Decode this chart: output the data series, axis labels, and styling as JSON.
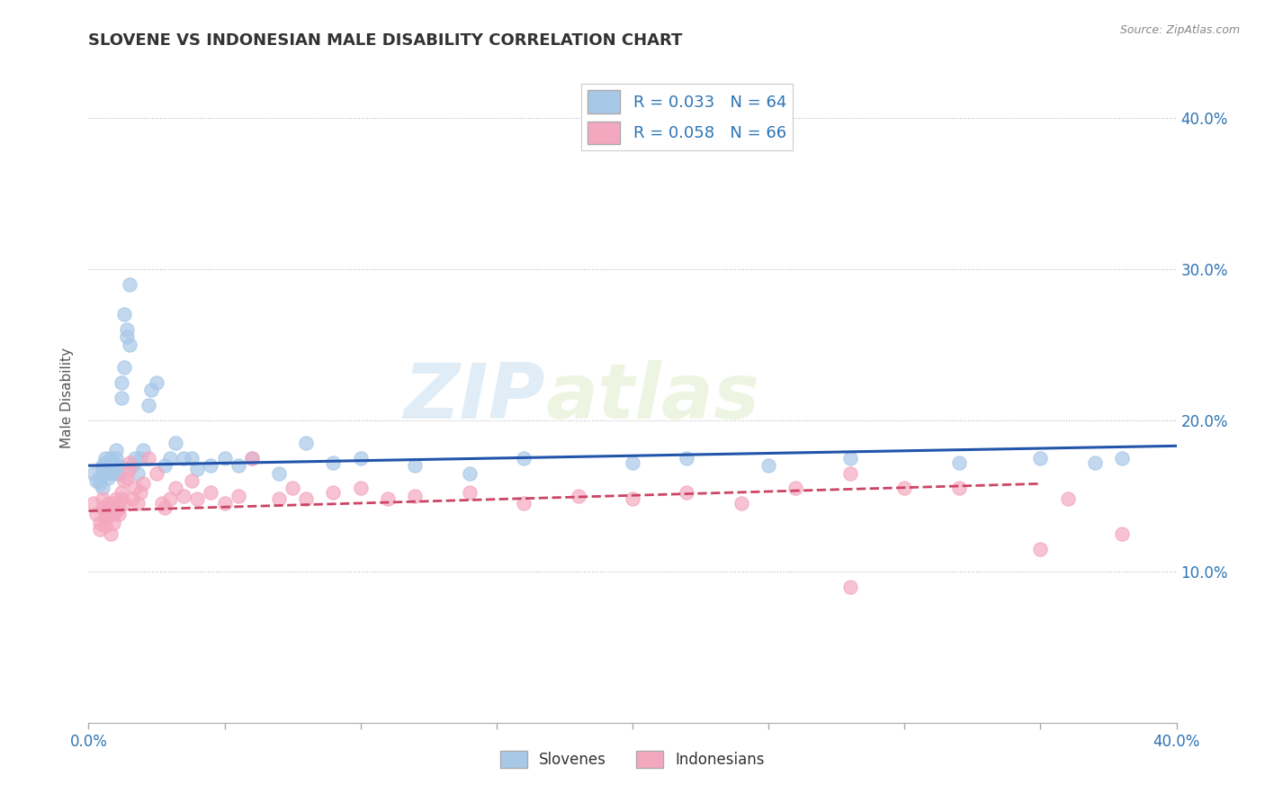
{
  "title": "SLOVENE VS INDONESIAN MALE DISABILITY CORRELATION CHART",
  "source": "Source: ZipAtlas.com",
  "ylabel": "Male Disability",
  "xlim": [
    0.0,
    0.4
  ],
  "ylim": [
    0.0,
    0.43
  ],
  "ytick_vals": [
    0.1,
    0.2,
    0.3,
    0.4
  ],
  "ytick_labels": [
    "10.0%",
    "20.0%",
    "30.0%",
    "40.0%"
  ],
  "xtick_vals": [
    0.0,
    0.4
  ],
  "xtick_labels": [
    "0.0%",
    "40.0%"
  ],
  "legend_blue_label": "R = 0.033   N = 64",
  "legend_pink_label": "R = 0.058   N = 66",
  "legend_bottom_slovenes": "Slovenes",
  "legend_bottom_indonesians": "Indonesians",
  "blue_color": "#a8c8e8",
  "pink_color": "#f4a8c0",
  "blue_line_color": "#2255aa",
  "pink_line_color": "#cc4466",
  "watermark_zip": "ZIP",
  "watermark_atlas": "atlas",
  "title_color": "#333333",
  "axis_color": "#2E74B5",
  "slovene_points_x": [
    0.002,
    0.003,
    0.004,
    0.004,
    0.005,
    0.005,
    0.005,
    0.006,
    0.006,
    0.006,
    0.007,
    0.007,
    0.008,
    0.008,
    0.008,
    0.009,
    0.009,
    0.01,
    0.01,
    0.01,
    0.011,
    0.011,
    0.012,
    0.012,
    0.013,
    0.013,
    0.014,
    0.014,
    0.015,
    0.015,
    0.016,
    0.017,
    0.018,
    0.019,
    0.02,
    0.022,
    0.023,
    0.025,
    0.028,
    0.03,
    0.032,
    0.035,
    0.038,
    0.04,
    0.045,
    0.05,
    0.055,
    0.06,
    0.07,
    0.08,
    0.09,
    0.1,
    0.12,
    0.14,
    0.16,
    0.2,
    0.22,
    0.25,
    0.28,
    0.32,
    0.35,
    0.37,
    0.2,
    0.38
  ],
  "slovene_points_y": [
    0.165,
    0.16,
    0.158,
    0.162,
    0.17,
    0.155,
    0.168,
    0.172,
    0.165,
    0.175,
    0.168,
    0.162,
    0.175,
    0.165,
    0.17,
    0.168,
    0.172,
    0.165,
    0.175,
    0.18,
    0.17,
    0.165,
    0.225,
    0.215,
    0.27,
    0.235,
    0.255,
    0.26,
    0.29,
    0.25,
    0.17,
    0.175,
    0.165,
    0.175,
    0.18,
    0.21,
    0.22,
    0.225,
    0.17,
    0.175,
    0.185,
    0.175,
    0.175,
    0.168,
    0.17,
    0.175,
    0.17,
    0.175,
    0.165,
    0.185,
    0.172,
    0.175,
    0.17,
    0.165,
    0.175,
    0.172,
    0.175,
    0.17,
    0.175,
    0.172,
    0.175,
    0.172,
    0.4,
    0.175
  ],
  "indonesian_points_x": [
    0.002,
    0.003,
    0.004,
    0.004,
    0.005,
    0.005,
    0.006,
    0.006,
    0.006,
    0.007,
    0.007,
    0.008,
    0.008,
    0.009,
    0.009,
    0.009,
    0.01,
    0.01,
    0.011,
    0.011,
    0.012,
    0.012,
    0.013,
    0.013,
    0.014,
    0.015,
    0.015,
    0.016,
    0.017,
    0.018,
    0.019,
    0.02,
    0.022,
    0.025,
    0.027,
    0.028,
    0.03,
    0.032,
    0.035,
    0.038,
    0.04,
    0.045,
    0.05,
    0.055,
    0.06,
    0.07,
    0.075,
    0.08,
    0.09,
    0.1,
    0.11,
    0.12,
    0.14,
    0.16,
    0.18,
    0.2,
    0.22,
    0.24,
    0.26,
    0.28,
    0.3,
    0.32,
    0.35,
    0.36,
    0.28,
    0.38
  ],
  "indonesian_points_y": [
    0.145,
    0.138,
    0.132,
    0.128,
    0.142,
    0.148,
    0.14,
    0.135,
    0.13,
    0.145,
    0.138,
    0.142,
    0.125,
    0.138,
    0.145,
    0.132,
    0.14,
    0.148,
    0.138,
    0.142,
    0.148,
    0.152,
    0.145,
    0.16,
    0.162,
    0.168,
    0.172,
    0.148,
    0.155,
    0.145,
    0.152,
    0.158,
    0.175,
    0.165,
    0.145,
    0.142,
    0.148,
    0.155,
    0.15,
    0.16,
    0.148,
    0.152,
    0.145,
    0.15,
    0.175,
    0.148,
    0.155,
    0.148,
    0.152,
    0.155,
    0.148,
    0.15,
    0.152,
    0.145,
    0.15,
    0.148,
    0.152,
    0.145,
    0.155,
    0.165,
    0.155,
    0.155,
    0.115,
    0.148,
    0.09,
    0.125
  ],
  "blue_line_x": [
    0.0,
    0.4
  ],
  "blue_line_y": [
    0.17,
    0.183
  ],
  "pink_line_x": [
    0.0,
    0.35
  ],
  "pink_line_y": [
    0.14,
    0.158
  ]
}
